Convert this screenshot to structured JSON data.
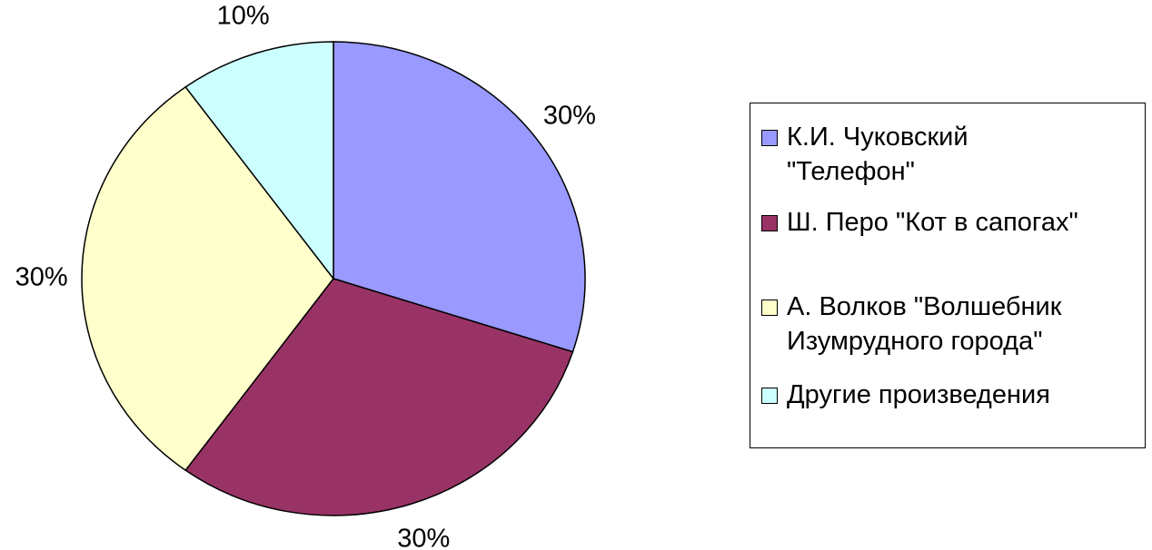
{
  "chart_data": {
    "type": "pie",
    "categories": [
      "К.И. Чуковский \"Телефон\"",
      "Ш. Перо \"Кот в сапогах\"",
      "А. Волков \"Волшебник Изумрудного города\"",
      "Другие произведения"
    ],
    "values": [
      30,
      30,
      30,
      10
    ],
    "value_labels": [
      "30%",
      "30%",
      "30%",
      "10%"
    ],
    "colors": [
      "#9999ff",
      "#993366",
      "#ffffcc",
      "#ccffff"
    ],
    "legend": "right"
  }
}
